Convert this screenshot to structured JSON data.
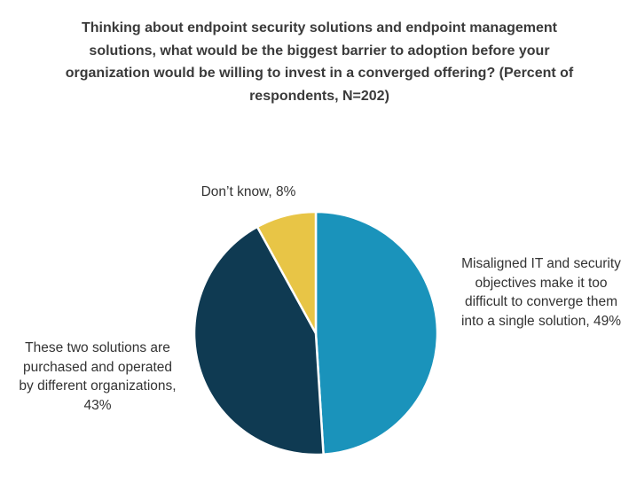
{
  "chart_data": {
    "type": "pie",
    "title": "Thinking about endpoint security solutions and endpoint management solutions, what would be the biggest barrier to adoption before your organization would be willing to invest in a converged offering? (Percent of respondents, N=202)",
    "slices": [
      {
        "label": "Misaligned IT and security objectives make it too difficult to converge them into a single solution, 49%",
        "value": 49,
        "color": "#1a93bb"
      },
      {
        "label": "These two solutions are purchased and operated by different organizations, 43%",
        "value": 43,
        "color": "#0f3a52"
      },
      {
        "label": "Don’t know, 8%",
        "value": 8,
        "color": "#e8c546"
      }
    ],
    "start_angle": "12 o'clock",
    "direction": "clockwise"
  }
}
